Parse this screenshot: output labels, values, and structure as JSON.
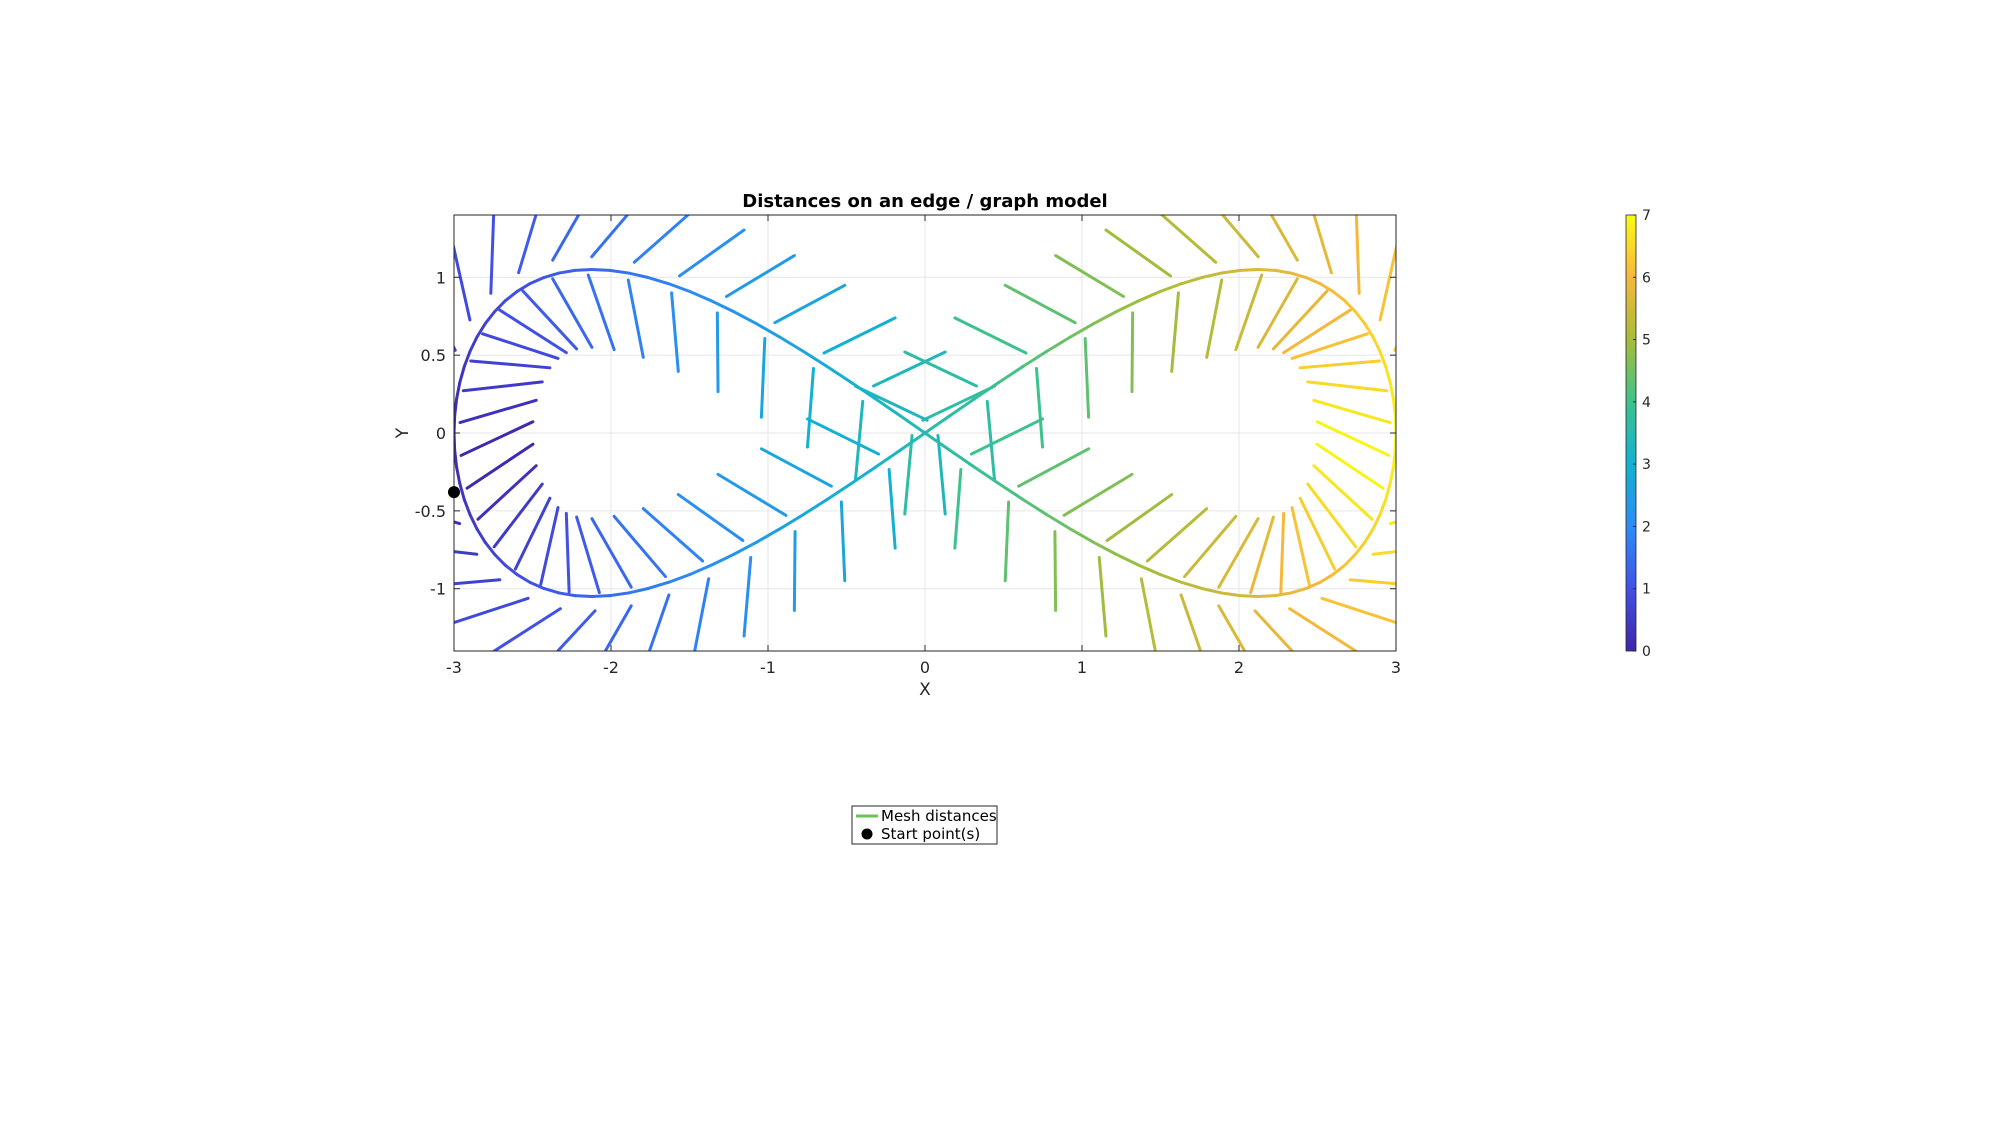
{
  "chart_data": {
    "type": "line",
    "title": "Distances on an edge / graph model",
    "xlabel": "X",
    "ylabel": "Y",
    "xlim": [
      -3,
      3
    ],
    "ylim": [
      -1.4,
      1.4
    ],
    "xticks": [
      -3,
      -2,
      -1,
      0,
      1,
      2,
      3
    ],
    "xtick_labels": [
      "-3",
      "-2",
      "-1",
      "0",
      "1",
      "2",
      "3"
    ],
    "yticks": [
      -1,
      -0.5,
      0,
      0.5,
      1
    ],
    "ytick_labels": [
      "-1",
      "-0.5",
      "0",
      "0.5",
      "1"
    ],
    "grid": true,
    "colorbar": {
      "colormap": "parula",
      "range": [
        0,
        7
      ],
      "ticks": [
        0,
        1,
        2,
        3,
        4,
        5,
        6,
        7
      ],
      "tick_labels": [
        "0",
        "1",
        "2",
        "3",
        "4",
        "5",
        "6",
        "7"
      ]
    },
    "series": [
      {
        "name": "Mesh distances",
        "kind": "edges colored by distance",
        "spine": {
          "description": "lemniscate-like curve through origin",
          "x_amplitude": 3.0,
          "y_amplitude": 1.0,
          "samples": 120
        },
        "spine_width": 0.03,
        "rib_half_length": 0.5,
        "legend_color": "#6cc35c"
      },
      {
        "name": "Start point(s)",
        "kind": "marker",
        "x": [
          -3.0
        ],
        "y": [
          -0.38
        ],
        "color": "#000000"
      }
    ],
    "legend": {
      "placement": "below-plot",
      "entries": [
        "Mesh distances",
        "Start point(s)"
      ]
    }
  }
}
